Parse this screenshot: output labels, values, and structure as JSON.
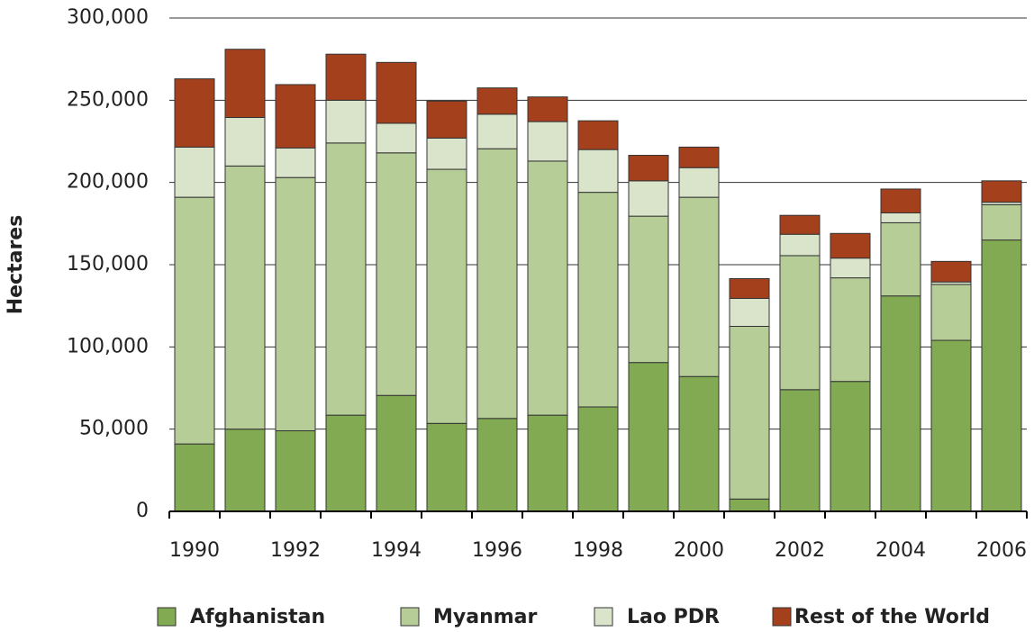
{
  "chart_data": {
    "type": "stacked_bar",
    "y_label": "Hectares",
    "categories": [
      "1990",
      null,
      "1992",
      null,
      "1994",
      null,
      "1996",
      null,
      "1998",
      null,
      "2000",
      null,
      "2002",
      null,
      "2004",
      null,
      "2006"
    ],
    "series": [
      {
        "name": "Afghanistan",
        "color": "#82aa52",
        "values": [
          41000,
          50000,
          49000,
          58500,
          70500,
          53500,
          56500,
          58500,
          63500,
          90500,
          82000,
          7500,
          74000,
          79000,
          131000,
          104000,
          165000
        ]
      },
      {
        "name": "Myanmar",
        "color": "#b6cd98",
        "values": [
          150000,
          160000,
          154000,
          165500,
          147500,
          154500,
          164000,
          154500,
          130500,
          89000,
          109000,
          105000,
          81500,
          63000,
          44500,
          34000,
          21500
        ]
      },
      {
        "name": "Lao PDR",
        "color": "#d9e4cb",
        "values": [
          30500,
          29500,
          18000,
          26000,
          18000,
          19000,
          21000,
          24000,
          26000,
          21500,
          18000,
          17000,
          13000,
          12000,
          6000,
          1500,
          1500
        ]
      },
      {
        "name": "Rest of the World",
        "color": "#a5401d",
        "values": [
          41500,
          41500,
          38500,
          28000,
          37000,
          22500,
          16000,
          15000,
          17500,
          15500,
          12500,
          12000,
          11500,
          15000,
          14500,
          12500,
          13000
        ]
      }
    ],
    "ylim": [
      0,
      300000
    ],
    "yticks": [
      0,
      {
        "value": 50000,
        "label": "50,000"
      },
      {
        "value": 100000,
        "label": "100,000"
      },
      {
        "value": 150000,
        "label": "150,000"
      },
      {
        "value": 200000,
        "label": "200,000"
      },
      {
        "value": 250000,
        "label": "250,000"
      },
      {
        "value": 300000,
        "label": "300,000"
      }
    ],
    "grid": true,
    "legend": "bottom"
  }
}
